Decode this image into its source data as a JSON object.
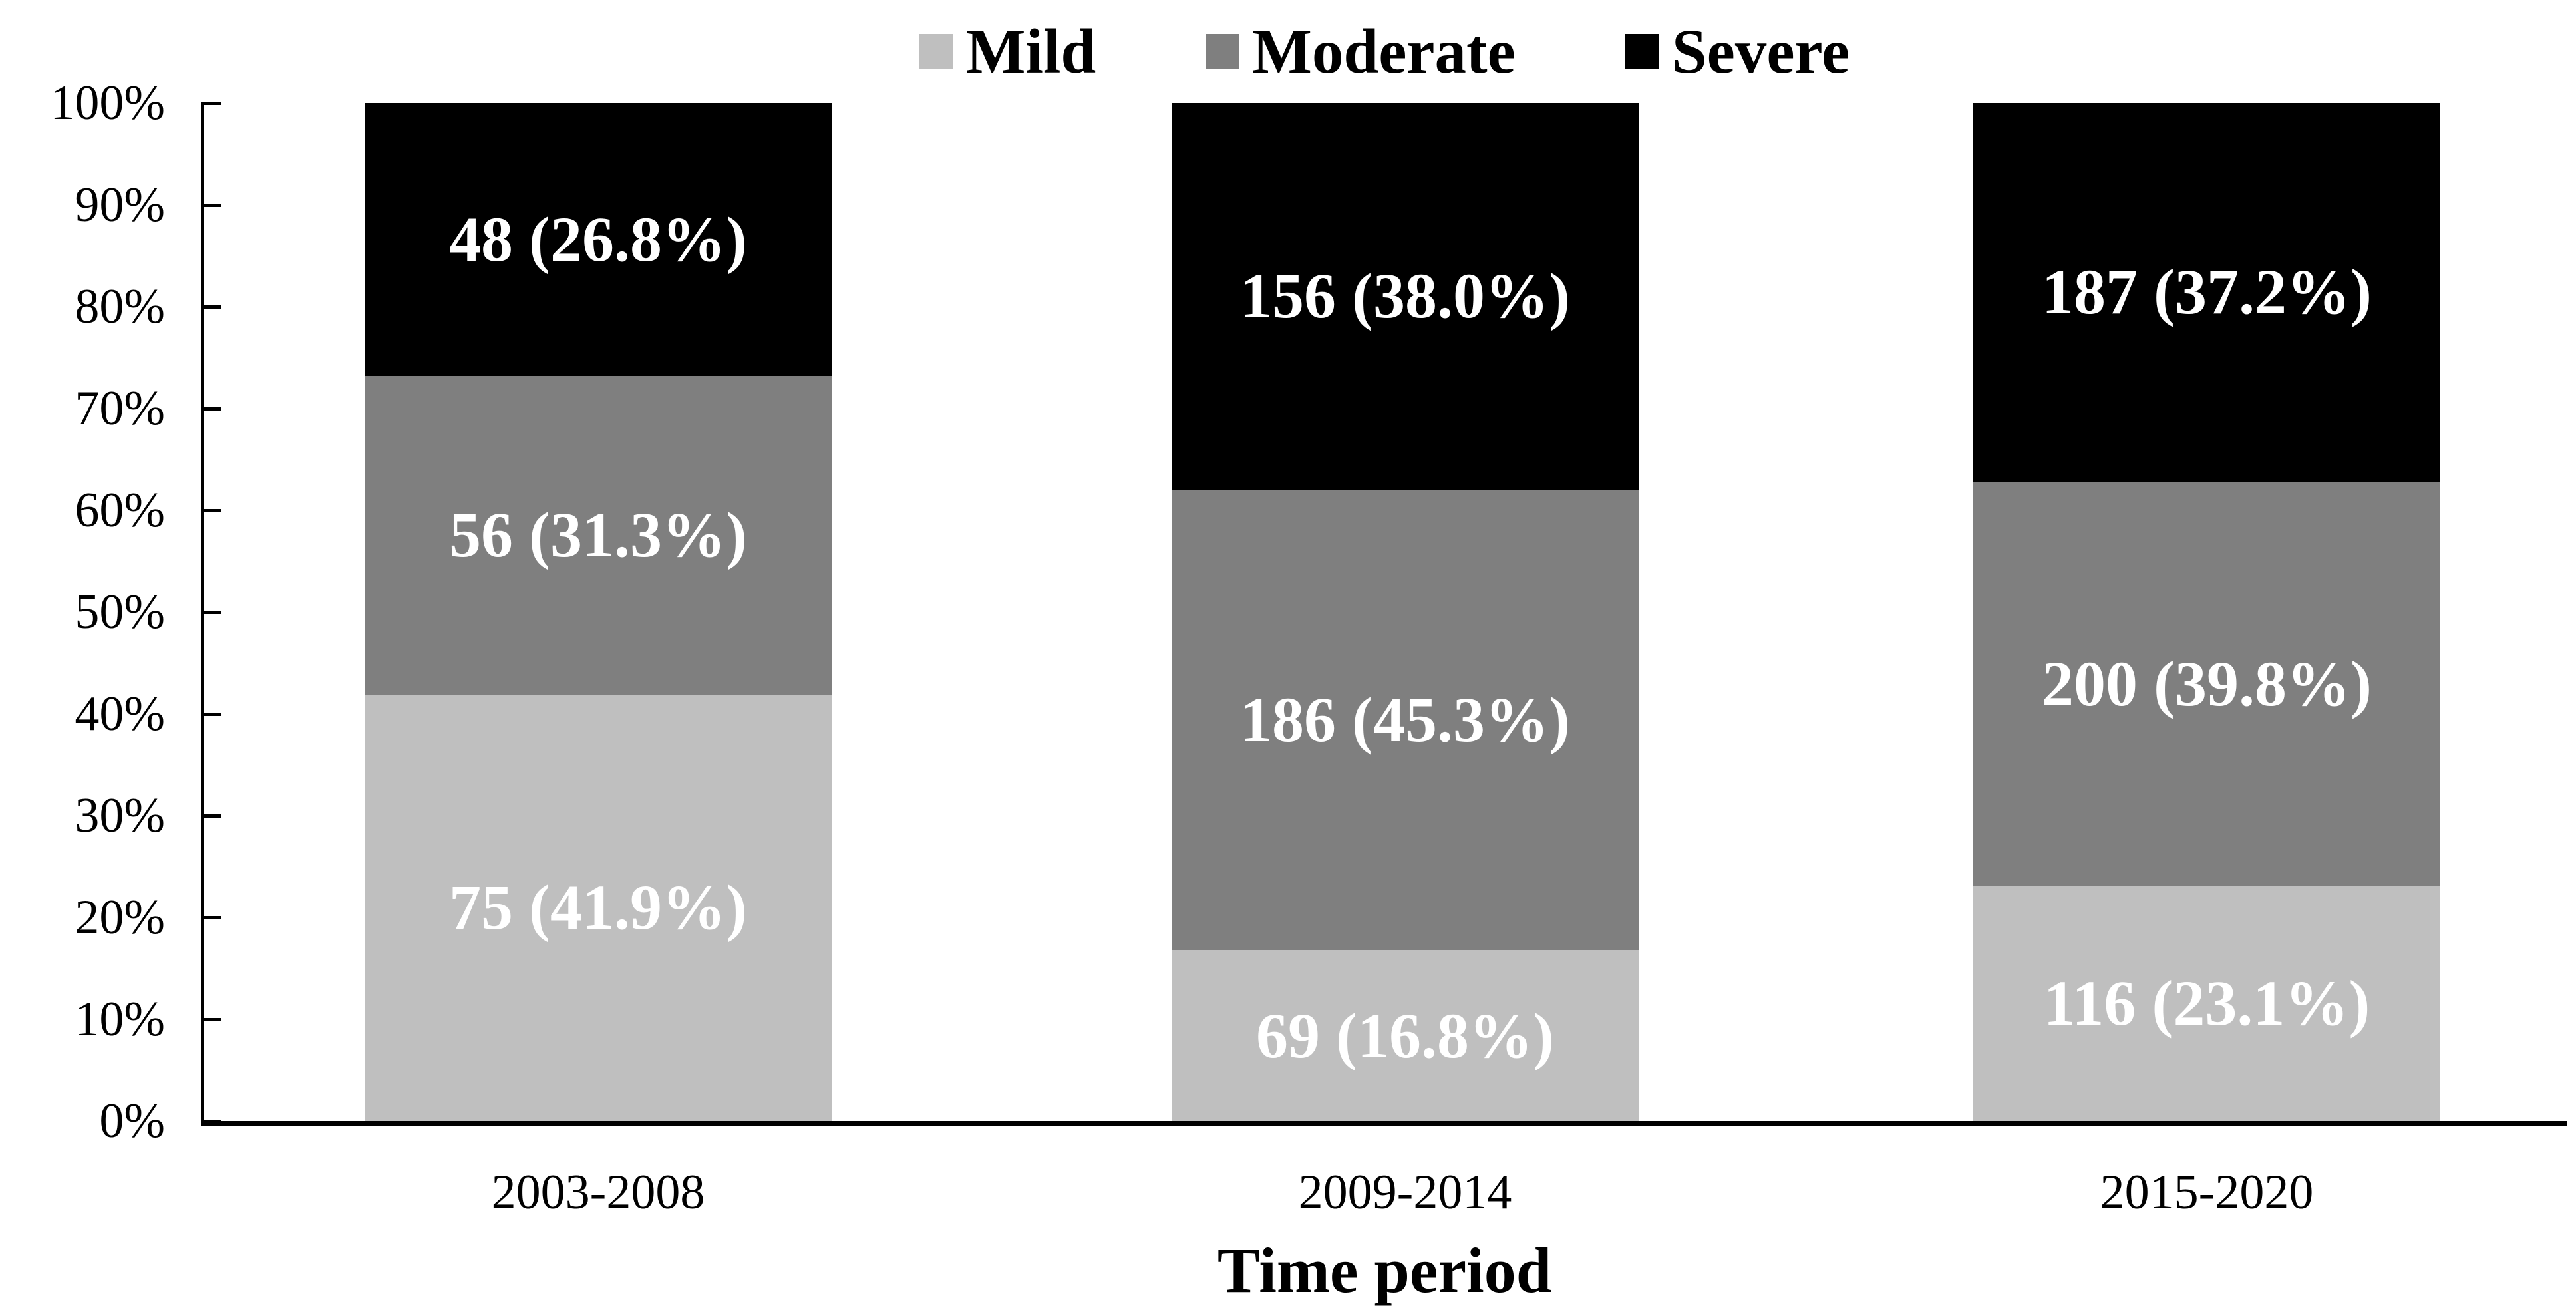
{
  "chart_data": {
    "type": "bar",
    "stacked": true,
    "percent_stacked": true,
    "title": "",
    "xlabel": "Time period",
    "ylabel": "",
    "categories": [
      "2003-2008",
      "2009-2014",
      "2015-2020"
    ],
    "series": [
      {
        "name": "Mild",
        "color": "#bfbfbf",
        "counts": [
          75,
          69,
          116
        ],
        "pcts": [
          41.9,
          16.8,
          23.1
        ],
        "labels": [
          "75 (41.9%)",
          "69 (16.8%)",
          "116 (23.1%)"
        ]
      },
      {
        "name": "Moderate",
        "color": "#7f7f7f",
        "counts": [
          56,
          186,
          200
        ],
        "pcts": [
          31.3,
          45.3,
          39.8
        ],
        "labels": [
          "56 (31.3%)",
          "186 (45.3%)",
          "200 (39.8%)"
        ]
      },
      {
        "name": "Severe",
        "color": "#000000",
        "counts": [
          48,
          156,
          187
        ],
        "pcts": [
          26.8,
          38.0,
          37.2
        ],
        "labels": [
          "48 (26.8%)",
          "156 (38.0%)",
          "187 (37.2%)"
        ]
      }
    ],
    "y_axis": {
      "min": 0,
      "max": 100,
      "tick_step": 10,
      "tick_labels": [
        "0%",
        "10%",
        "20%",
        "30%",
        "40%",
        "50%",
        "60%",
        "70%",
        "80%",
        "90%",
        "100%"
      ]
    },
    "legend": {
      "position": "top",
      "entries": [
        "Mild",
        "Moderate",
        "Severe"
      ]
    },
    "gridlines": false,
    "data_label_color": "#ffffff",
    "axis_color": "#000000",
    "background_color": "#ffffff"
  }
}
